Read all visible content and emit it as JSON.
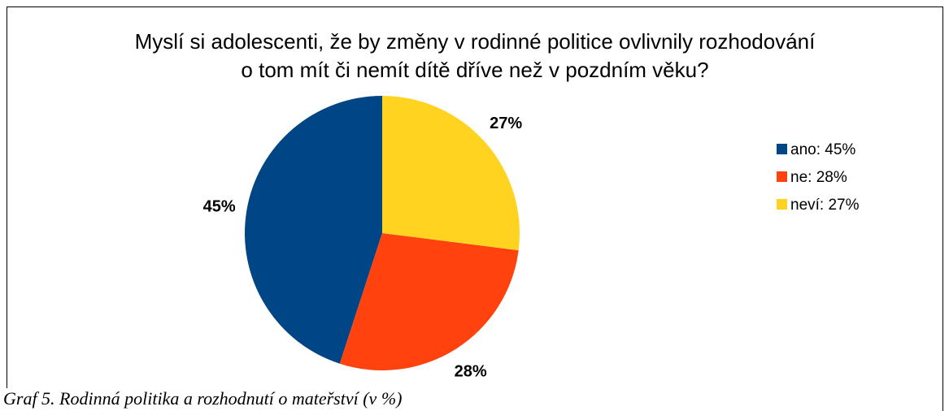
{
  "chart_data": {
    "type": "pie",
    "title": [
      "Myslí si adolescenti, že by změny v rodinné politice ovlivnily rozhodování",
      "o tom mít či nemít dítě dříve než v pozdním věku?"
    ],
    "categories": [
      "ano: 45%",
      "ne: 28%",
      "neví: 27%"
    ],
    "values": [
      45,
      28,
      27
    ],
    "value_labels": [
      "45%",
      "28%",
      "27%"
    ],
    "colors": [
      "#004586",
      "#ff420e",
      "#ffd320"
    ],
    "direction": "counterclockwise",
    "legend": "right"
  },
  "caption": "Graf 5. Rodinná politika a rozhodnutí o mateřství (v %)"
}
